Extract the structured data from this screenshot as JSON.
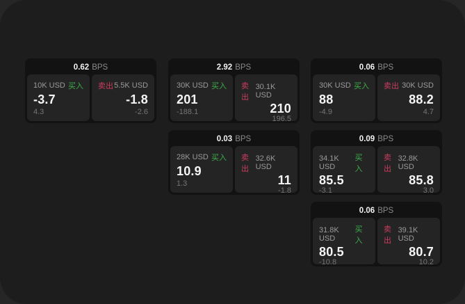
{
  "labels": {
    "bps_unit": "BPS",
    "buy": "买入",
    "sell": "卖出"
  },
  "colors": {
    "buy": "#3dae49",
    "sell": "#cb3d60",
    "window_bg": "#1d1d1d",
    "card_bg": "#121212",
    "panel_bg": "#242424"
  },
  "cards": [
    {
      "bps": "0.62",
      "buy": {
        "notional": "10K USD",
        "price": "-3.7",
        "change": "4.3"
      },
      "sell": {
        "notional": "5.5K USD",
        "price": "-1.8",
        "change": "-2.6"
      }
    },
    {
      "bps": "2.92",
      "buy": {
        "notional": "30K USD",
        "price": "201",
        "change": "-188.1"
      },
      "sell": {
        "notional": "30.1K USD",
        "price": "210",
        "change": "196.5"
      }
    },
    {
      "bps": "0.06",
      "buy": {
        "notional": "30K USD",
        "price": "88",
        "change": "-4.9"
      },
      "sell": {
        "notional": "30K USD",
        "price": "88.2",
        "change": "4.7"
      }
    },
    {
      "bps": "0.03",
      "buy": {
        "notional": "28K USD",
        "price": "10.9",
        "change": "1.3"
      },
      "sell": {
        "notional": "32.6K USD",
        "price": "11",
        "change": "-1.8"
      }
    },
    {
      "bps": "0.09",
      "buy": {
        "notional": "34.1K USD",
        "price": "85.5",
        "change": "-3.1"
      },
      "sell": {
        "notional": "32.8K USD",
        "price": "85.8",
        "change": "3.0"
      }
    },
    {
      "bps": "0.06",
      "buy": {
        "notional": "31.8K USD",
        "price": "80.5",
        "change": "-10.8"
      },
      "sell": {
        "notional": "39.1K USD",
        "price": "80.7",
        "change": "10.2"
      }
    }
  ]
}
